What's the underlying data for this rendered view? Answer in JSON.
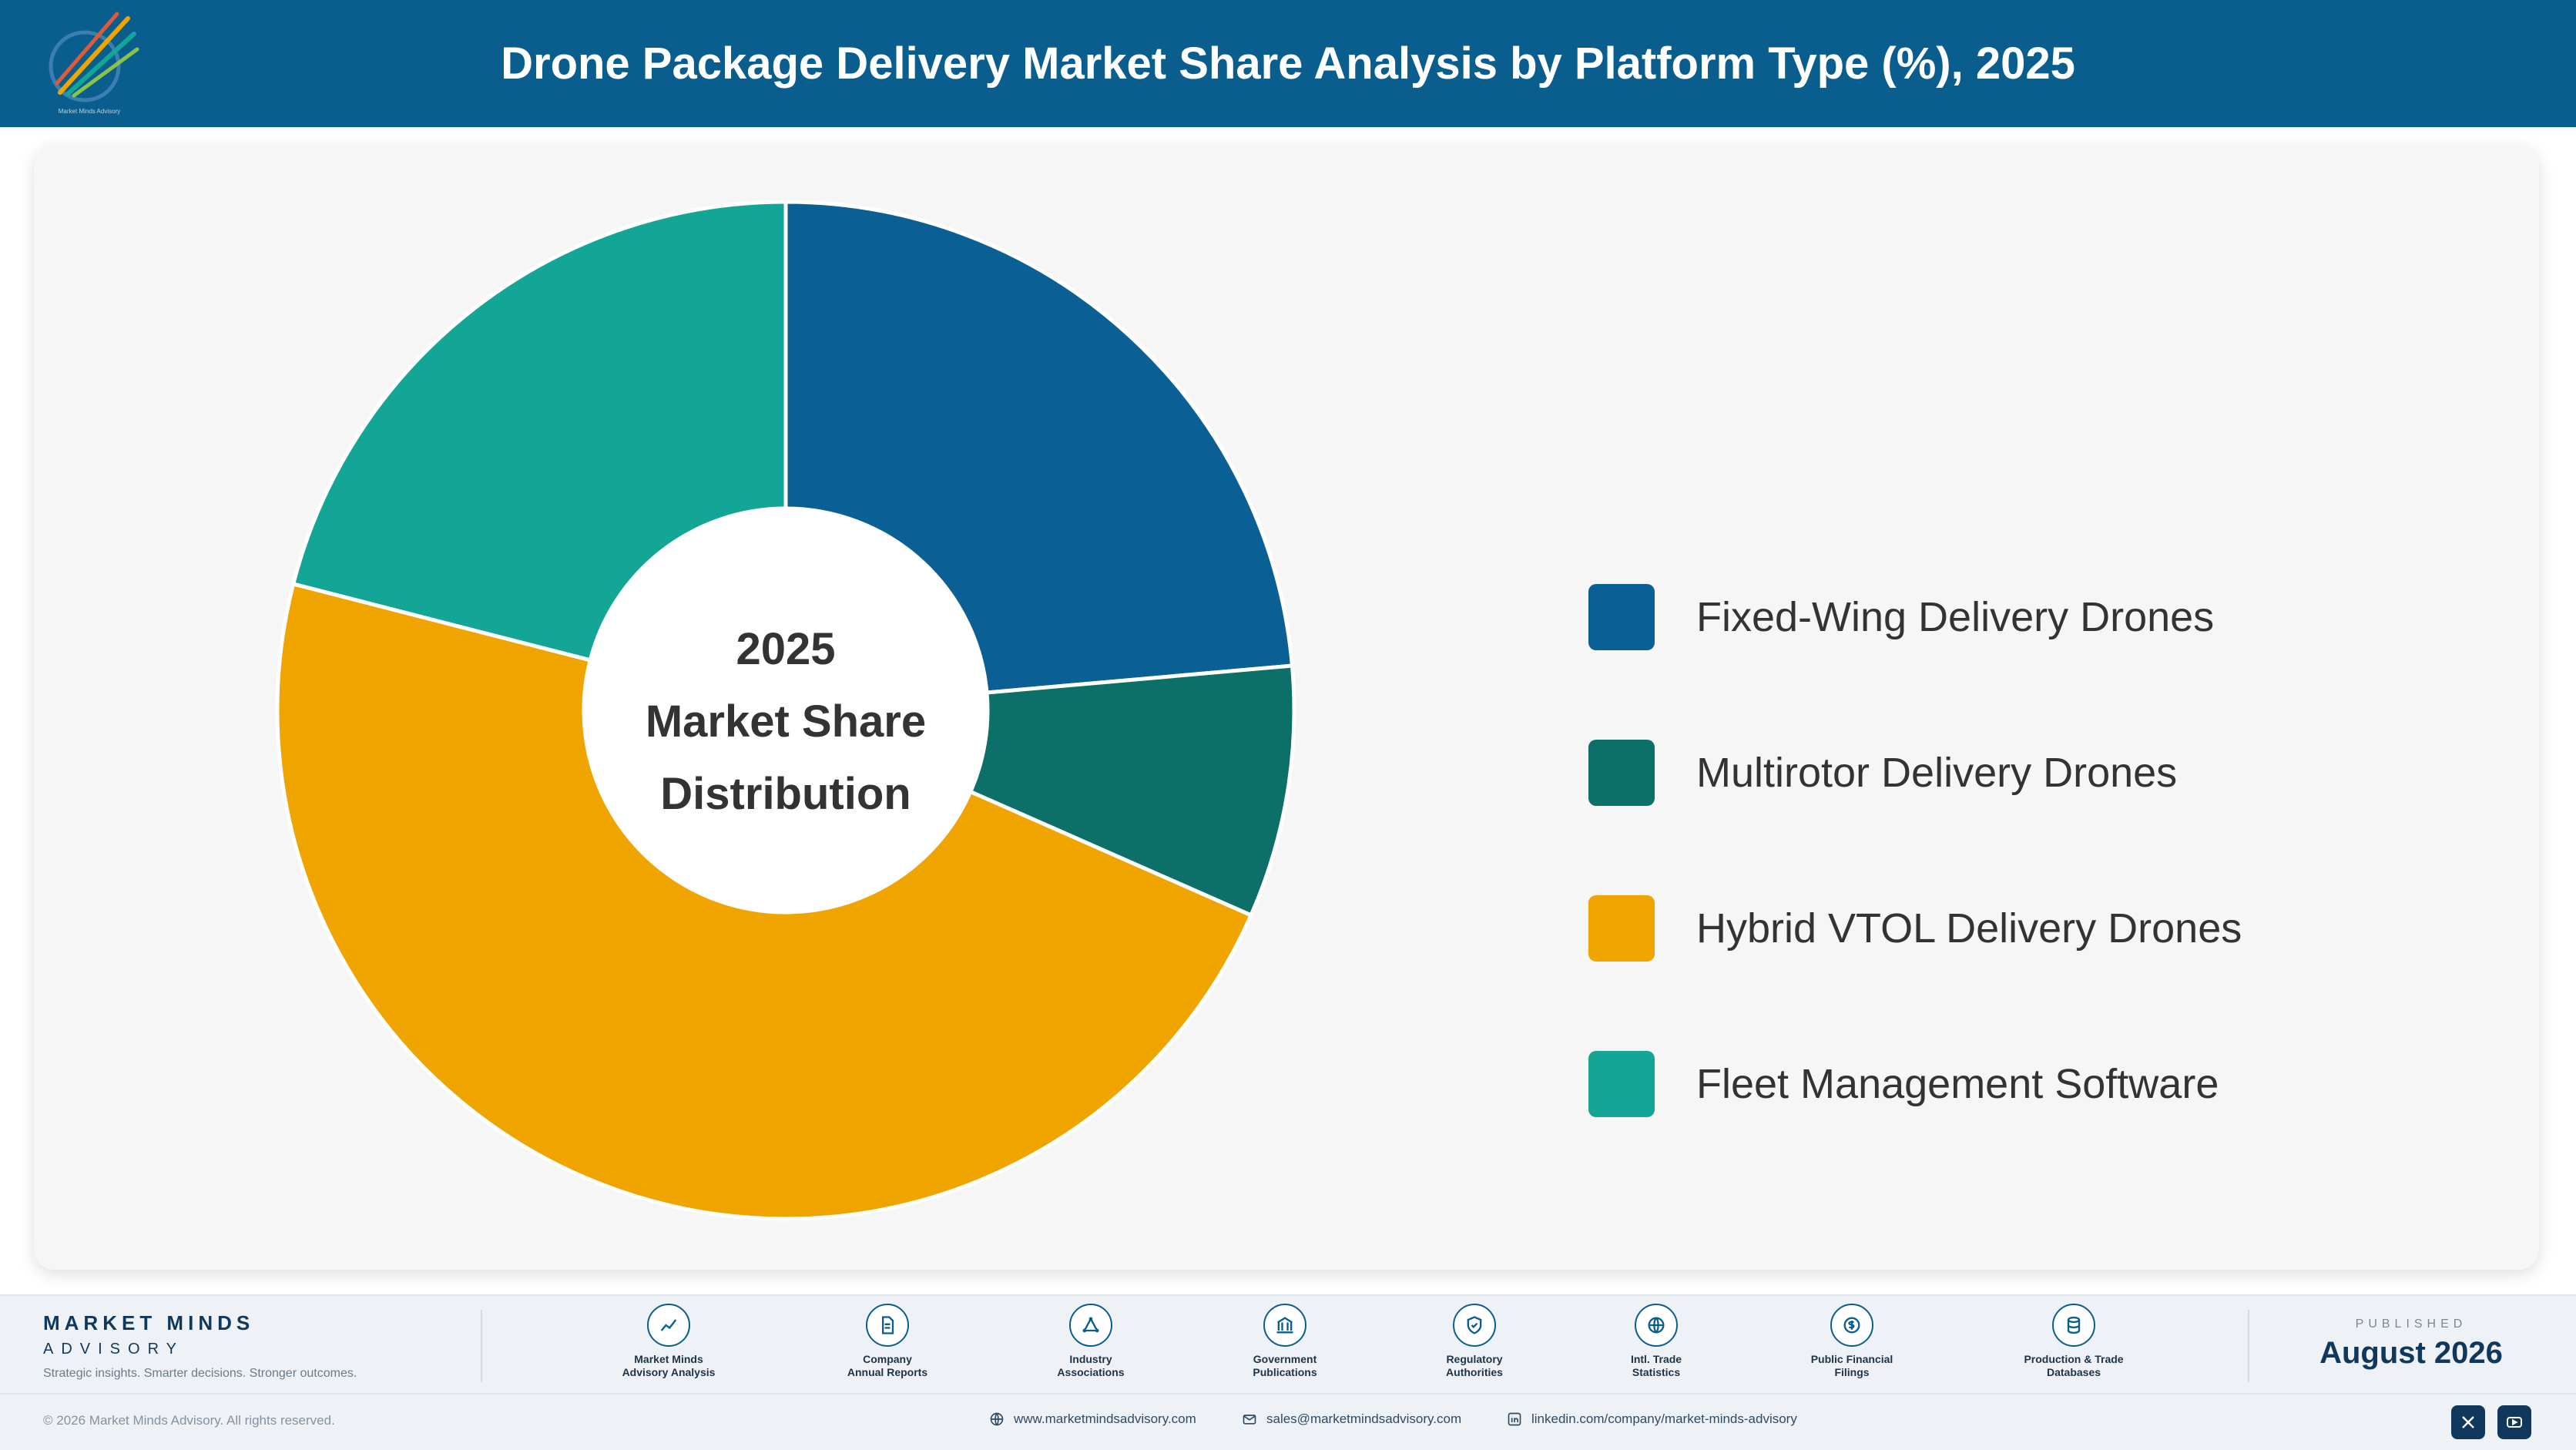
{
  "header": {
    "title": "Drone Package Delivery Market Share Analysis by Platform Type (%), 2025",
    "logo_caption": "Market Minds Advisory"
  },
  "chart_data": {
    "type": "pie",
    "donut": true,
    "center_label": [
      "2025",
      "Market Share",
      "Distribution"
    ],
    "categories": [
      "Fixed-Wing Delivery Drones",
      "Multirotor Delivery Drones",
      "Hybrid VTOL Delivery Drones",
      "Fleet Management Software"
    ],
    "values": [
      23.6,
      8.0,
      47.4,
      21.0
    ],
    "colors": [
      "#0a6094",
      "#0d7068",
      "#f0a400",
      "#13a595"
    ],
    "legend_position": "right"
  },
  "footer": {
    "brand_name": "MARKET MINDS",
    "brand_sub": "ADVISORY",
    "tagline": "Strategic insights. Smarter decisions. Stronger outcomes.",
    "sources": [
      {
        "label": "Market Minds\nAdvisory Analysis",
        "icon": "trend-line-icon"
      },
      {
        "label": "Company\nAnnual Reports",
        "icon": "document-icon"
      },
      {
        "label": "Industry\nAssociations",
        "icon": "network-icon"
      },
      {
        "label": "Government\nPublications",
        "icon": "government-building-icon"
      },
      {
        "label": "Regulatory\nAuthorities",
        "icon": "shield-check-icon"
      },
      {
        "label": "Intl. Trade\nStatistics",
        "icon": "globe-icon"
      },
      {
        "label": "Public Financial\nFilings",
        "icon": "dollar-coin-icon"
      },
      {
        "label": "Production & Trade\nDatabases",
        "icon": "database-icon"
      }
    ],
    "published_label": "PUBLISHED",
    "published_date": "August 2026",
    "copyright": "© 2026 Market Minds Advisory. All rights reserved.",
    "website": "www.marketmindsadvisory.com",
    "email": "sales@marketmindsadvisory.com",
    "linkedin": "linkedin.com/company/market-minds-advisory",
    "social_icons": [
      "x-icon",
      "youtube-icon"
    ]
  }
}
